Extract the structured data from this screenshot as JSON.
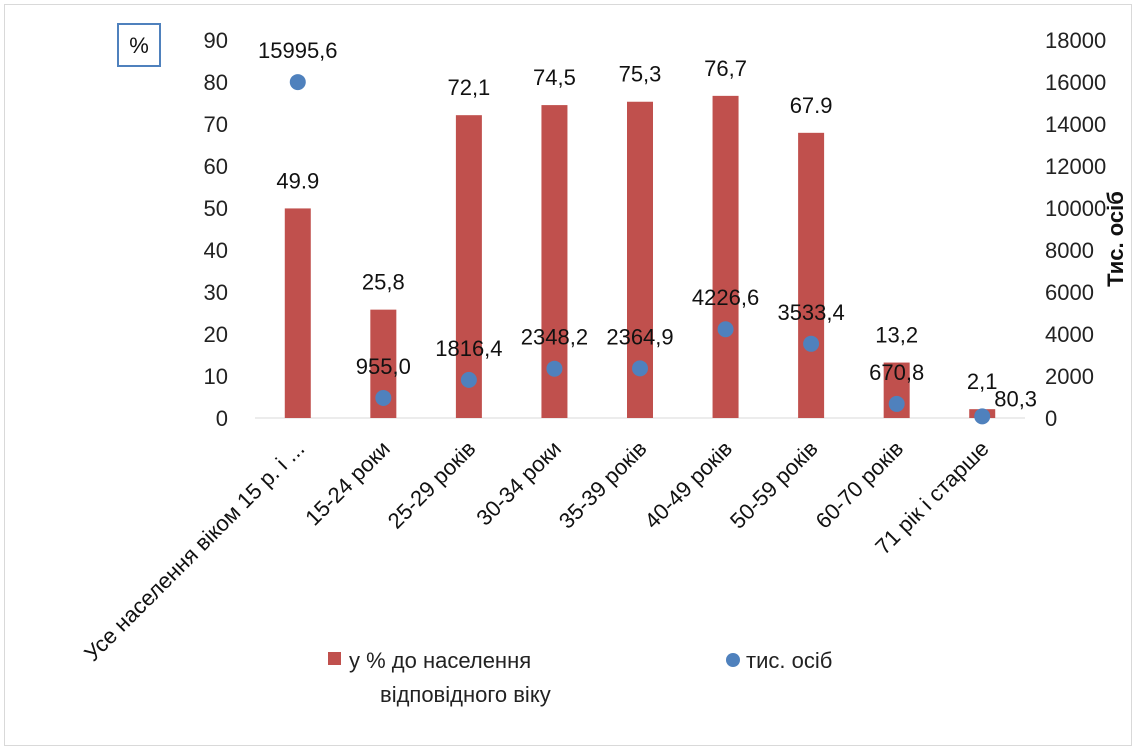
{
  "chart_data": {
    "type": "bar",
    "categories": [
      "Усе населення віком 15 р. і ...",
      "15-24 роки",
      "25-29 років",
      "30-34 роки",
      "35-39 років",
      "40-49 років",
      "50-59 років",
      "60-70 років",
      "71 рік і старше"
    ],
    "series": [
      {
        "name": "у % до  населення відповідного віку",
        "type": "bar",
        "axis": "left",
        "color": "#c0504d",
        "values": [
          49.9,
          25.8,
          72.1,
          74.5,
          75.3,
          76.7,
          67.9,
          13.2,
          2.1
        ],
        "labels": [
          "49.9",
          "25,8",
          "72,1",
          "74,5",
          "75,3",
          "76,7",
          "67.9",
          "13,2",
          "2,1"
        ]
      },
      {
        "name": "тис. осіб",
        "type": "scatter",
        "axis": "right",
        "color": "#4f81bd",
        "values": [
          15995.6,
          955.0,
          1816.4,
          2348.2,
          2364.9,
          4226.6,
          3533.4,
          670.8,
          80.3
        ],
        "labels": [
          "15995,6",
          "955,0",
          "1816,4",
          "2348,2",
          "2364,9",
          "4226,6",
          "3533,4",
          "670,8",
          "80,3"
        ]
      }
    ],
    "y_left": {
      "label": "%",
      "lim": [
        0,
        90
      ],
      "ticks": [
        "0",
        "10",
        "20",
        "30",
        "40",
        "50",
        "60",
        "70",
        "80",
        "90"
      ]
    },
    "y_right": {
      "label": "Тис. осіб",
      "lim": [
        0,
        18000
      ],
      "ticks": [
        "0",
        "2000",
        "4000",
        "6000",
        "8000",
        "10000",
        "12000",
        "14000",
        "16000",
        "18000"
      ]
    },
    "legend": {
      "position": "bottom",
      "bar_label_line1": "у % до  населення",
      "bar_label_line2": "відповідного віку",
      "dot_label": "тис. осіб"
    },
    "grid": false
  }
}
